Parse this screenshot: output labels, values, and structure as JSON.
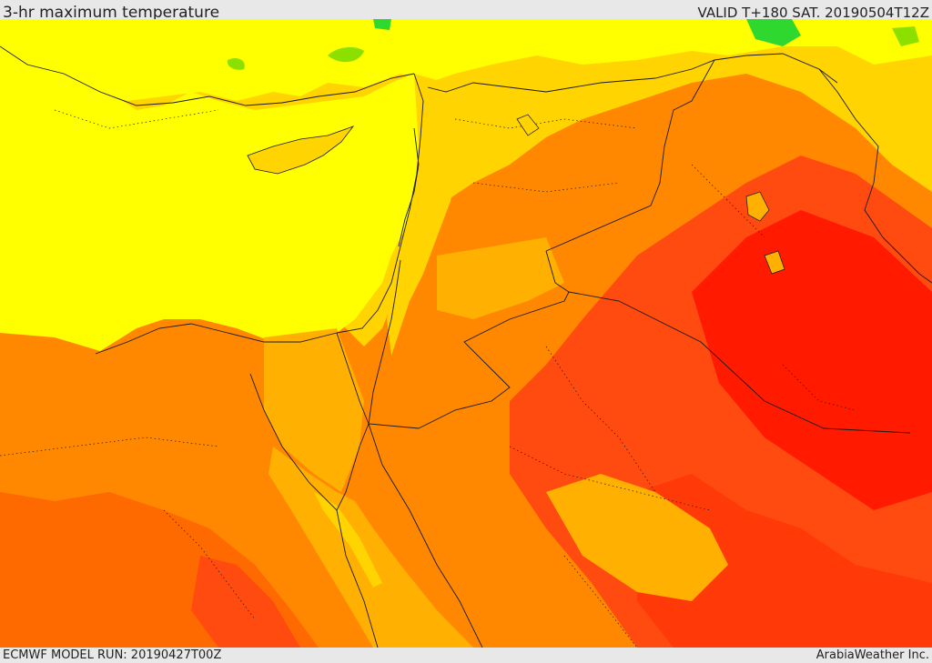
{
  "header": {
    "title": "3-hr maximum temperature",
    "valid_time": "VALID T+180 SAT. 20190504T12Z"
  },
  "footer": {
    "model_run": "ECMWF MODEL RUN: 20190427T00Z",
    "credit": "ArabiaWeather Inc."
  },
  "map": {
    "region": "Eastern Mediterranean / Levant",
    "palette": {
      "green": "#2ed82e",
      "light_green": "#b6f000",
      "yellow": "#ffff00",
      "gold": "#ffd400",
      "light_orange": "#ffb000",
      "orange": "#ff8800",
      "dark_orange": "#ff6a00",
      "red_orange": "#ff4a10",
      "red": "#ff1a00",
      "border": "#1a1a1a"
    }
  }
}
